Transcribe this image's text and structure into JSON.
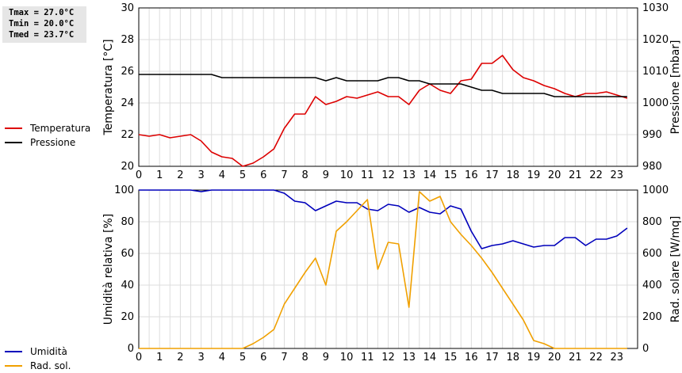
{
  "stats": {
    "tmax": "Tmax = 27.0°C",
    "tmin": "Tmin = 20.0°C",
    "tmed": "Tmed = 23.7°C"
  },
  "legend_top": [
    {
      "label": "Temperatura",
      "color": "#dd0000"
    },
    {
      "label": "Pressione",
      "color": "#000000"
    }
  ],
  "legend_bottom": [
    {
      "label": "Umidità",
      "color": "#0000bb"
    },
    {
      "label": "Rad. sol.",
      "color": "#f0a000"
    }
  ],
  "chart_data": [
    {
      "type": "line",
      "x": [
        0,
        0.5,
        1,
        1.5,
        2,
        2.5,
        3,
        3.5,
        4,
        4.5,
        5,
        5.5,
        6,
        6.5,
        7,
        7.5,
        8,
        8.5,
        9,
        9.5,
        10,
        10.5,
        11,
        11.5,
        12,
        12.5,
        13,
        13.5,
        14,
        14.5,
        15,
        15.5,
        16,
        16.5,
        17,
        17.5,
        18,
        18.5,
        19,
        19.5,
        20,
        20.5,
        21,
        21.5,
        22,
        22.5,
        23,
        23.5
      ],
      "xticks": [
        0,
        1,
        2,
        3,
        4,
        5,
        6,
        7,
        8,
        9,
        10,
        11,
        12,
        13,
        14,
        15,
        16,
        17,
        18,
        19,
        20,
        21,
        22,
        23
      ],
      "xlim": [
        0,
        24
      ],
      "ylabel": "Temperatura [°C]",
      "ylim": [
        20,
        30
      ],
      "yticks": [
        20,
        22,
        24,
        26,
        28,
        30
      ],
      "y2label": "Pressione [mbar]",
      "y2lim": [
        980,
        1030
      ],
      "y2ticks": [
        980,
        990,
        1000,
        1010,
        1020,
        1030
      ],
      "grid": true,
      "series": [
        {
          "name": "Temperatura",
          "axis": "left",
          "color": "#dd0000",
          "values": [
            22.0,
            21.9,
            22.0,
            21.8,
            21.9,
            22.0,
            21.6,
            20.9,
            20.6,
            20.5,
            20.0,
            20.2,
            20.6,
            21.1,
            22.4,
            23.3,
            23.3,
            24.4,
            23.9,
            24.1,
            24.4,
            24.3,
            24.5,
            24.7,
            24.4,
            24.4,
            23.9,
            24.8,
            25.2,
            24.8,
            24.6,
            25.4,
            25.5,
            26.5,
            26.5,
            27.0,
            26.1,
            25.6,
            25.4,
            25.1,
            24.9,
            24.6,
            24.4,
            24.6,
            24.6,
            24.7,
            24.5,
            24.3
          ]
        },
        {
          "name": "Pressione",
          "axis": "right",
          "color": "#000000",
          "values": [
            1009,
            1009,
            1009,
            1009,
            1009,
            1009,
            1009,
            1009,
            1008,
            1008,
            1008,
            1008,
            1008,
            1008,
            1008,
            1008,
            1008,
            1008,
            1007,
            1008,
            1007,
            1007,
            1007,
            1007,
            1008,
            1008,
            1007,
            1007,
            1006,
            1006,
            1006,
            1006,
            1005,
            1004,
            1004,
            1003,
            1003,
            1003,
            1003,
            1003,
            1002,
            1002,
            1002,
            1002,
            1002,
            1002,
            1002,
            1002
          ]
        }
      ]
    },
    {
      "type": "line",
      "x": [
        0,
        0.5,
        1,
        1.5,
        2,
        2.5,
        3,
        3.5,
        4,
        4.5,
        5,
        5.5,
        6,
        6.5,
        7,
        7.5,
        8,
        8.5,
        9,
        9.5,
        10,
        10.5,
        11,
        11.5,
        12,
        12.5,
        13,
        13.5,
        14,
        14.5,
        15,
        15.5,
        16,
        16.5,
        17,
        17.5,
        18,
        18.5,
        19,
        19.5,
        20,
        20.5,
        21,
        21.5,
        22,
        22.5,
        23,
        23.5
      ],
      "xticks": [
        0,
        1,
        2,
        3,
        4,
        5,
        6,
        7,
        8,
        9,
        10,
        11,
        12,
        13,
        14,
        15,
        16,
        17,
        18,
        19,
        20,
        21,
        22,
        23
      ],
      "xlim": [
        0,
        24
      ],
      "ylabel": "Umidità relativa [%]",
      "ylim": [
        0,
        100
      ],
      "yticks": [
        0,
        20,
        40,
        60,
        80,
        100
      ],
      "y2label": "Rad. solare [W/mq]",
      "y2lim": [
        0,
        1000
      ],
      "y2ticks": [
        0,
        200,
        400,
        600,
        800,
        1000
      ],
      "grid": true,
      "series": [
        {
          "name": "Umidità",
          "axis": "left",
          "color": "#0000bb",
          "values": [
            100,
            100,
            100,
            100,
            100,
            100,
            99,
            100,
            100,
            100,
            100,
            100,
            100,
            100,
            98,
            93,
            92,
            87,
            90,
            93,
            92,
            92,
            88,
            87,
            91,
            90,
            86,
            89,
            86,
            85,
            90,
            88,
            74,
            63,
            65,
            66,
            68,
            66,
            64,
            65,
            65,
            70,
            70,
            65,
            69,
            69,
            71,
            76
          ]
        },
        {
          "name": "Rad. sol.",
          "axis": "right",
          "color": "#f0a000",
          "values": [
            0,
            0,
            0,
            0,
            0,
            0,
            0,
            0,
            0,
            0,
            0,
            30,
            70,
            120,
            280,
            380,
            480,
            570,
            400,
            740,
            800,
            870,
            940,
            500,
            670,
            660,
            260,
            990,
            930,
            960,
            800,
            720,
            650,
            570,
            480,
            380,
            280,
            180,
            50,
            30,
            0,
            0,
            0,
            0,
            0,
            0,
            0,
            0
          ]
        }
      ]
    }
  ]
}
